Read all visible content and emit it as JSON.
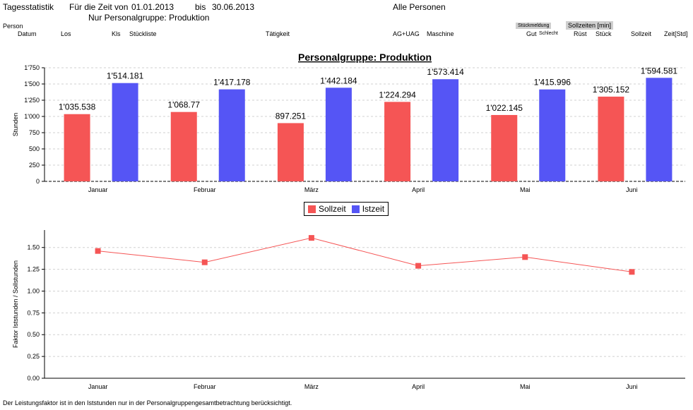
{
  "header": {
    "title": "Tagesstatistik",
    "period_label": "Für die Zeit von",
    "date_from": "01.01.2013",
    "bis_label": "bis",
    "date_to": "30.06.2013",
    "persons": "Alle Personen",
    "group_filter": "Nur Personalgruppe: Produktion"
  },
  "columns": {
    "person": "Person",
    "datum": "Datum",
    "los": "Los",
    "kls": "Kls",
    "stueckliste": "Stückliste",
    "taetigkeit": "Tätigkeit",
    "ag_uag": "AG+UAG",
    "maschine": "Maschine",
    "stueckmeldung": "Stückmeldung",
    "gut": "Gut",
    "schlecht": "Schlecht",
    "sollzeiten_min": "Sollzeiten [min]",
    "ruest": "Rüst",
    "stueck": "Stück",
    "sollzeit": "Sollzeit",
    "zeit_std": "Zeit[Std]"
  },
  "legend": {
    "sollzeit": "Sollzeit",
    "istzeit": "Istzeit"
  },
  "footer": "Der Leistungsfaktor ist in den Iststunden nur in der Personalgruppengesamtbetrachtung berücksichtigt.",
  "colors": {
    "sollzeit": "#f55555",
    "istzeit": "#5555f5",
    "line": "#f55555"
  },
  "chart_data": [
    {
      "type": "bar",
      "title": "Personalgruppe: Produktion",
      "xlabel": "",
      "ylabel": "Stunden",
      "ylim": [
        0,
        1750
      ],
      "yticks": [
        0,
        250,
        500,
        750,
        1000,
        1250,
        1500,
        1750
      ],
      "ytick_labels": [
        "0",
        "250",
        "500",
        "750",
        "1'000",
        "1'250",
        "1'500",
        "1'750"
      ],
      "grid": true,
      "legend_position": "bottom",
      "categories": [
        "Januar",
        "Februar",
        "März",
        "April",
        "Mai",
        "Juni"
      ],
      "series": [
        {
          "name": "Sollzeit",
          "values": [
            1035.538,
            1068.77,
            897.251,
            1224.294,
            1022.145,
            1305.152
          ],
          "labels": [
            "1'035.538",
            "1'068.77",
            "897.251",
            "1'224.294",
            "1'022.145",
            "1'305.152"
          ]
        },
        {
          "name": "Istzeit",
          "values": [
            1514.181,
            1417.178,
            1442.184,
            1573.414,
            1415.996,
            1594.581
          ],
          "labels": [
            "1'514.181",
            "1'417.178",
            "1'442.184",
            "1'573.414",
            "1'415.996",
            "1'594.581"
          ]
        }
      ]
    },
    {
      "type": "line",
      "title": "",
      "xlabel": "",
      "ylabel": "Faktor Iststunden / Sollstunden",
      "ylim": [
        0,
        1.7
      ],
      "yticks": [
        0,
        0.25,
        0.5,
        0.75,
        1.0,
        1.25,
        1.5
      ],
      "ytick_labels": [
        "0.00",
        "0.25",
        "0.50",
        "0.75",
        "1.00",
        "1.25",
        "1.50"
      ],
      "grid": true,
      "categories": [
        "Januar",
        "Februar",
        "März",
        "April",
        "Mai",
        "Juni"
      ],
      "values": [
        1.46,
        1.33,
        1.61,
        1.29,
        1.39,
        1.22
      ]
    }
  ]
}
